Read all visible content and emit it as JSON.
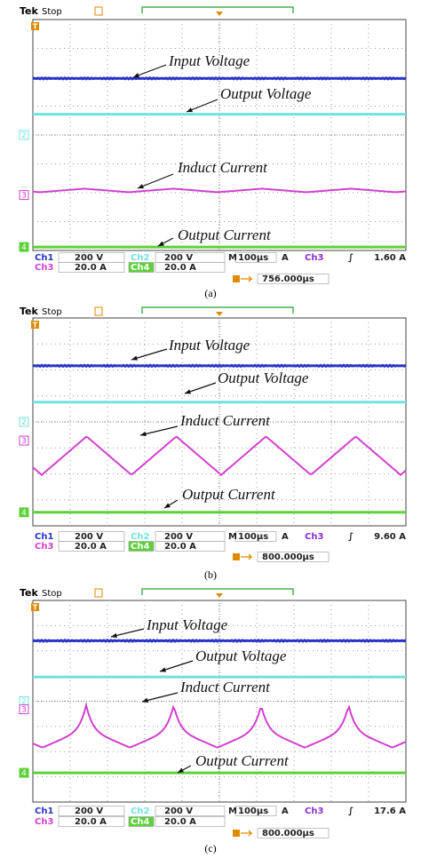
{
  "panels": [
    {
      "header": {
        "brand": "Tek",
        "status": "Stop"
      },
      "markers": {
        "trigger": "T",
        "ch2": "2",
        "ch3": "3",
        "ch4": "4"
      },
      "annotations": [
        "Input Voltage",
        "Output Voltage",
        "Induct Current",
        "Output Current"
      ],
      "readout": {
        "ch1_label": "Ch1",
        "ch1_scale": "200 V",
        "ch2_label": "Ch2",
        "ch2_scale": "200 V",
        "timebase_label": "M",
        "timebase": "100µs",
        "trigger_mode": "A",
        "trigger_channel": "Ch3",
        "trigger_slope": "∫",
        "trigger_level": "1.60 A",
        "ch3_label": "Ch3",
        "ch3_scale": "20.0 A",
        "ch4_label": "Ch4",
        "ch4_scale": "20.0 A",
        "position": "756.000µs"
      },
      "caption": "(a)"
    },
    {
      "header": {
        "brand": "Tek",
        "status": "Stop"
      },
      "markers": {
        "trigger": "T",
        "ch2": "2",
        "ch3": "3",
        "ch4": "4"
      },
      "annotations": [
        "Input Voltage",
        "Output Voltage",
        "Induct Current",
        "Output Current"
      ],
      "readout": {
        "ch1_label": "Ch1",
        "ch1_scale": "200 V",
        "ch2_label": "Ch2",
        "ch2_scale": "200 V",
        "timebase_label": "M",
        "timebase": "100µs",
        "trigger_mode": "A",
        "trigger_channel": "Ch3",
        "trigger_slope": "∫",
        "trigger_level": "9.60 A",
        "ch3_label": "Ch3",
        "ch3_scale": "20.0 A",
        "ch4_label": "Ch4",
        "ch4_scale": "20.0 A",
        "position": "800.000µs"
      },
      "caption": "(b)"
    },
    {
      "header": {
        "brand": "Tek",
        "status": "Stop"
      },
      "markers": {
        "trigger": "T",
        "ch2": "2",
        "ch3": "3",
        "ch4": "4"
      },
      "annotations": [
        "Input Voltage",
        "Output Voltage",
        "Induct Current",
        "Output Current"
      ],
      "readout": {
        "ch1_label": "Ch1",
        "ch1_scale": "200 V",
        "ch2_label": "Ch2",
        "ch2_scale": "200 V",
        "timebase_label": "M",
        "timebase": "100µs",
        "trigger_mode": "A",
        "trigger_channel": "Ch3",
        "trigger_slope": "∫",
        "trigger_level": "17.6 A",
        "ch3_label": "Ch3",
        "ch3_scale": "20.0 A",
        "ch4_label": "Ch4",
        "ch4_scale": "20.0 A",
        "position": "800.000µs"
      },
      "caption": "(c)"
    }
  ]
}
